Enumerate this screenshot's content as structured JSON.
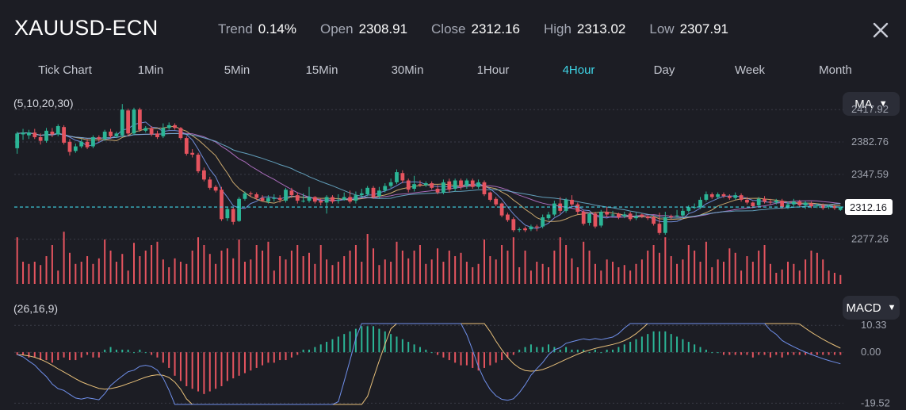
{
  "header": {
    "symbol": "XAUUSD-ECN",
    "stats": [
      {
        "label": "Trend",
        "value": "0.14%"
      },
      {
        "label": "Open",
        "value": "2308.91"
      },
      {
        "label": "Close",
        "value": "2312.16"
      },
      {
        "label": "High",
        "value": "2313.02"
      },
      {
        "label": "Low",
        "value": "2307.91"
      }
    ]
  },
  "tabs": [
    "Tick Chart",
    "1Min",
    "5Min",
    "15Min",
    "30Min",
    "1Hour",
    "4Hour",
    "Day",
    "Week",
    "Month"
  ],
  "active_tab": "4Hour",
  "main_indicator": {
    "params": "(5,10,20,30)",
    "selected": "MA"
  },
  "sub_indicator": {
    "params": "(26,16,9)",
    "selected": "MACD"
  },
  "colors": {
    "up": "#2bb596",
    "down": "#e5545f",
    "accent": "#3fd6e8",
    "background": "#1c1d24"
  },
  "price_axis": {
    "ticks": [
      "2417.92",
      "2382.76",
      "2347.59",
      "2277.26"
    ],
    "current": "2312.16"
  },
  "macd_axis": {
    "ticks": [
      "10.33",
      "0.00",
      "-19.52"
    ]
  },
  "chart_data": {
    "type": "candlestick",
    "price_range": [
      2270,
      2425
    ],
    "candles": [
      [
        2376,
        2392,
        2370,
        2394
      ],
      [
        2391,
        2393,
        2385,
        2397
      ],
      [
        2390,
        2393,
        2386,
        2396
      ],
      [
        2393,
        2388,
        2386,
        2397
      ],
      [
        2388,
        2384,
        2380,
        2392
      ],
      [
        2384,
        2395,
        2382,
        2398
      ],
      [
        2394,
        2391,
        2388,
        2398
      ],
      [
        2391,
        2400,
        2389,
        2402
      ],
      [
        2399,
        2382,
        2380,
        2401
      ],
      [
        2383,
        2372,
        2368,
        2386
      ],
      [
        2373,
        2378,
        2371,
        2381
      ],
      [
        2378,
        2383,
        2376,
        2386
      ],
      [
        2383,
        2377,
        2375,
        2386
      ],
      [
        2378,
        2388,
        2376,
        2390
      ],
      [
        2388,
        2386,
        2383,
        2390
      ],
      [
        2386,
        2394,
        2384,
        2396
      ],
      [
        2394,
        2389,
        2387,
        2397
      ],
      [
        2389,
        2392,
        2387,
        2394
      ],
      [
        2390,
        2418,
        2388,
        2424
      ],
      [
        2417,
        2392,
        2389,
        2419
      ],
      [
        2392,
        2418,
        2390,
        2420
      ],
      [
        2418,
        2396,
        2394,
        2420
      ],
      [
        2395,
        2398,
        2393,
        2400
      ],
      [
        2398,
        2391,
        2389,
        2400
      ],
      [
        2392,
        2388,
        2386,
        2395
      ],
      [
        2389,
        2398,
        2387,
        2403
      ],
      [
        2398,
        2401,
        2396,
        2404
      ],
      [
        2401,
        2398,
        2396,
        2403
      ],
      [
        2398,
        2387,
        2385,
        2399
      ],
      [
        2387,
        2370,
        2368,
        2389
      ],
      [
        2371,
        2369,
        2366,
        2375
      ],
      [
        2369,
        2351,
        2349,
        2371
      ],
      [
        2352,
        2342,
        2340,
        2355
      ],
      [
        2342,
        2333,
        2331,
        2345
      ],
      [
        2334,
        2330,
        2328,
        2336
      ],
      [
        2331,
        2299,
        2297,
        2334
      ],
      [
        2300,
        2310,
        2297,
        2312
      ],
      [
        2310,
        2296,
        2293,
        2312
      ],
      [
        2297,
        2321,
        2296,
        2323
      ],
      [
        2321,
        2327,
        2319,
        2329
      ],
      [
        2327,
        2326,
        2323,
        2329
      ],
      [
        2326,
        2322,
        2320,
        2328
      ],
      [
        2322,
        2319,
        2318,
        2325
      ],
      [
        2318,
        2322,
        2316,
        2325
      ],
      [
        2321,
        2322,
        2318,
        2326
      ],
      [
        2322,
        2320,
        2317,
        2325
      ],
      [
        2319,
        2331,
        2317,
        2333
      ],
      [
        2330,
        2325,
        2322,
        2333
      ],
      [
        2325,
        2319,
        2316,
        2328
      ],
      [
        2319,
        2319,
        2317,
        2327
      ],
      [
        2319,
        2323,
        2317,
        2334
      ],
      [
        2323,
        2318,
        2316,
        2324
      ],
      [
        2319,
        2317,
        2314,
        2322
      ],
      [
        2317,
        2323,
        2305,
        2325
      ],
      [
        2323,
        2318,
        2316,
        2325
      ],
      [
        2319,
        2320,
        2316,
        2326
      ],
      [
        2320,
        2323,
        2319,
        2328
      ],
      [
        2323,
        2318,
        2316,
        2330
      ],
      [
        2319,
        2325,
        2316,
        2329
      ],
      [
        2325,
        2327,
        2322,
        2332
      ],
      [
        2326,
        2333,
        2324,
        2335
      ],
      [
        2333,
        2323,
        2321,
        2335
      ],
      [
        2324,
        2330,
        2321,
        2334
      ],
      [
        2330,
        2335,
        2328,
        2338
      ],
      [
        2335,
        2339,
        2333,
        2343
      ],
      [
        2339,
        2350,
        2337,
        2353
      ],
      [
        2349,
        2341,
        2338,
        2352
      ],
      [
        2341,
        2331,
        2328,
        2343
      ],
      [
        2332,
        2337,
        2329,
        2346
      ],
      [
        2337,
        2336,
        2334,
        2341
      ],
      [
        2336,
        2338,
        2334,
        2340
      ],
      [
        2338,
        2333,
        2331,
        2340
      ],
      [
        2332,
        2328,
        2326,
        2336
      ],
      [
        2328,
        2339,
        2326,
        2342
      ],
      [
        2340,
        2331,
        2328,
        2343
      ],
      [
        2332,
        2341,
        2329,
        2343
      ],
      [
        2341,
        2334,
        2331,
        2343
      ],
      [
        2335,
        2341,
        2332,
        2343
      ],
      [
        2341,
        2334,
        2332,
        2343
      ],
      [
        2334,
        2339,
        2332,
        2342
      ],
      [
        2339,
        2326,
        2324,
        2341
      ],
      [
        2328,
        2320,
        2318,
        2329
      ],
      [
        2321,
        2315,
        2313,
        2323
      ],
      [
        2316,
        2303,
        2301,
        2317
      ],
      [
        2304,
        2298,
        2296,
        2306
      ],
      [
        2299,
        2287,
        2285,
        2301
      ],
      [
        2288,
        2288,
        2285,
        2290
      ],
      [
        2289,
        2287,
        2285,
        2291
      ],
      [
        2288,
        2291,
        2286,
        2293
      ],
      [
        2291,
        2290,
        2286,
        2293
      ],
      [
        2291,
        2301,
        2289,
        2304
      ],
      [
        2300,
        2304,
        2298,
        2307
      ],
      [
        2304,
        2316,
        2302,
        2319
      ],
      [
        2316,
        2308,
        2305,
        2323
      ],
      [
        2308,
        2320,
        2306,
        2322
      ],
      [
        2320,
        2315,
        2313,
        2325
      ],
      [
        2315,
        2307,
        2304,
        2317
      ],
      [
        2307,
        2294,
        2292,
        2309
      ],
      [
        2295,
        2305,
        2292,
        2306
      ],
      [
        2305,
        2291,
        2289,
        2307
      ],
      [
        2292,
        2307,
        2290,
        2309
      ],
      [
        2307,
        2304,
        2301,
        2312
      ],
      [
        2304,
        2304,
        2301,
        2308
      ],
      [
        2305,
        2301,
        2299,
        2306
      ],
      [
        2302,
        2304,
        2300,
        2307
      ],
      [
        2305,
        2299,
        2297,
        2307
      ],
      [
        2300,
        2302,
        2298,
        2306
      ],
      [
        2304,
        2302,
        2300,
        2305
      ],
      [
        2302,
        2300,
        2298,
        2303
      ],
      [
        2301,
        2294,
        2292,
        2303
      ],
      [
        2294,
        2284,
        2282,
        2306
      ],
      [
        2284,
        2301,
        2282,
        2307
      ],
      [
        2302,
        2301,
        2299,
        2304
      ],
      [
        2302,
        2303,
        2301,
        2309
      ],
      [
        2303,
        2308,
        2301,
        2311
      ],
      [
        2308,
        2312,
        2306,
        2314
      ],
      [
        2312,
        2312,
        2310,
        2316
      ],
      [
        2312,
        2320,
        2310,
        2323
      ],
      [
        2320,
        2326,
        2318,
        2329
      ],
      [
        2326,
        2323,
        2321,
        2328
      ],
      [
        2323,
        2326,
        2321,
        2328
      ],
      [
        2326,
        2324,
        2322,
        2328
      ],
      [
        2324,
        2322,
        2320,
        2326
      ],
      [
        2322,
        2325,
        2320,
        2328
      ],
      [
        2325,
        2320,
        2318,
        2327
      ],
      [
        2320,
        2317,
        2315,
        2323
      ],
      [
        2317,
        2313,
        2311,
        2318
      ],
      [
        2314,
        2321,
        2312,
        2323
      ],
      [
        2321,
        2318,
        2316,
        2324
      ],
      [
        2318,
        2317,
        2315,
        2321
      ],
      [
        2317,
        2319,
        2315,
        2321
      ],
      [
        2319,
        2312,
        2310,
        2321
      ],
      [
        2312,
        2315,
        2310,
        2318
      ],
      [
        2315,
        2318,
        2313,
        2321
      ],
      [
        2318,
        2314,
        2312,
        2320
      ],
      [
        2314,
        2317,
        2310,
        2319
      ],
      [
        2316,
        2313,
        2311,
        2318
      ],
      [
        2313,
        2314,
        2311,
        2316
      ],
      [
        2314,
        2311,
        2309,
        2316
      ],
      [
        2312,
        2313,
        2310,
        2315
      ],
      [
        2313,
        2311,
        2309,
        2315
      ],
      [
        2309,
        2312,
        2308,
        2313
      ]
    ],
    "volume": [
      42,
      20,
      18,
      20,
      17,
      25,
      35,
      12,
      47,
      28,
      18,
      20,
      25,
      18,
      23,
      40,
      30,
      20,
      27,
      12,
      37,
      25,
      30,
      35,
      38,
      22,
      15,
      23,
      20,
      18,
      30,
      42,
      35,
      27,
      18,
      30,
      32,
      23,
      40,
      20,
      22,
      35,
      30,
      38,
      12,
      25,
      22,
      30,
      35,
      25,
      28,
      18,
      35,
      22,
      17,
      20,
      25,
      30,
      35,
      20,
      45,
      32,
      17,
      22,
      20,
      38,
      30,
      23,
      30,
      35,
      18,
      22,
      32,
      20,
      30,
      25,
      28,
      20,
      15,
      18,
      40,
      25,
      22,
      35,
      30,
      42,
      15,
      30,
      12,
      20,
      18,
      15,
      30,
      42,
      35,
      23,
      15,
      38,
      30,
      18,
      12,
      22,
      20,
      15,
      17,
      12,
      18,
      22,
      30,
      35,
      28,
      42,
      25,
      18,
      22,
      35,
      30,
      20,
      38,
      15,
      22,
      20,
      32,
      28,
      12,
      25,
      20,
      30,
      35,
      18,
      10,
      13,
      20,
      18,
      12,
      22,
      30,
      28,
      22,
      12,
      10,
      8
    ],
    "macd_histogram": [
      -1,
      -1,
      -2,
      -2,
      -3,
      -3,
      -4,
      -3,
      -2,
      -3,
      -3,
      -2,
      -1,
      -2,
      -2,
      1,
      2,
      1,
      1,
      1,
      0,
      1,
      0,
      -1,
      -2,
      -4,
      -6,
      -9,
      -11,
      -13,
      -14,
      -15,
      -16,
      -15,
      -14,
      -13,
      -11,
      -10,
      -9,
      -8,
      -7,
      -6,
      -5,
      -4,
      -4,
      -3,
      -3,
      -2,
      -1,
      1,
      1,
      2,
      3,
      4,
      5,
      6,
      7,
      8,
      9,
      10,
      10,
      10,
      9,
      8,
      7,
      6,
      5,
      4,
      3,
      2,
      1,
      0,
      -1,
      -2,
      -3,
      -4,
      -5,
      -5,
      -6,
      -7,
      -6,
      -5,
      -4,
      -3,
      -2,
      -1,
      1,
      2,
      3,
      2,
      2,
      3,
      2,
      1,
      2,
      1,
      1,
      1,
      0,
      1,
      0,
      1,
      1,
      2,
      3,
      4,
      5,
      6,
      7,
      8,
      8,
      8,
      7,
      6,
      5,
      4,
      3,
      2,
      1,
      0,
      0,
      -1,
      -1,
      -1,
      -1,
      -1,
      -2,
      -1,
      -1,
      -2,
      -1,
      -2,
      -1,
      -1,
      -1,
      -1,
      -1,
      -1,
      -1,
      -1,
      -1,
      -1
    ],
    "macd_range": [
      -20,
      11
    ]
  }
}
